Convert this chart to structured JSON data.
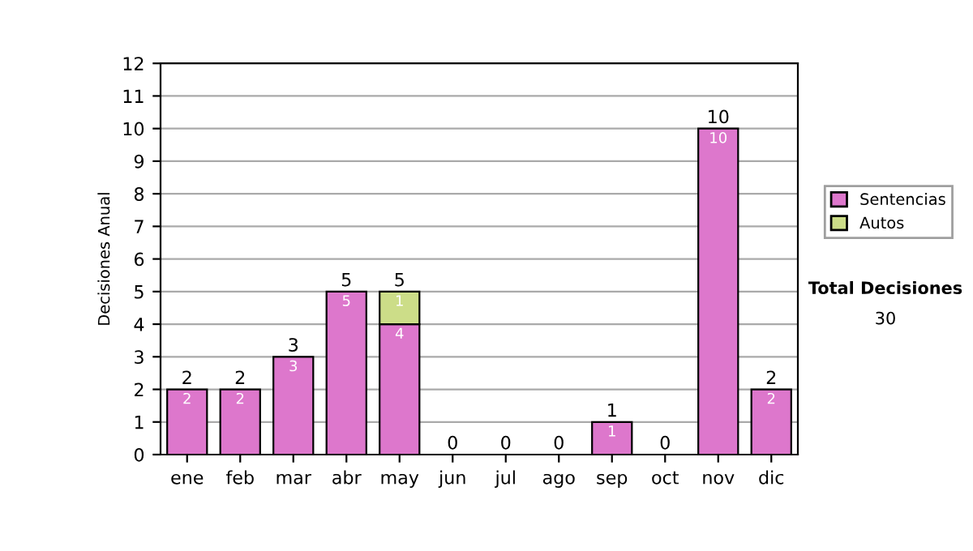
{
  "chart_data": {
    "type": "bar",
    "stacked": true,
    "ylabel": "Decisiones Anual",
    "categories": [
      "ene",
      "feb",
      "mar",
      "abr",
      "may",
      "jun",
      "jul",
      "ago",
      "sep",
      "oct",
      "nov",
      "dic"
    ],
    "series": [
      {
        "name": "Sentencias",
        "color": "#dd77cc",
        "values": [
          2,
          2,
          3,
          5,
          4,
          0,
          0,
          0,
          1,
          0,
          10,
          2
        ],
        "value_labels": [
          "2",
          "2",
          "3",
          "5",
          "4",
          null,
          null,
          null,
          "1",
          null,
          "10",
          "2"
        ]
      },
      {
        "name": "Autos",
        "color": "#ccdd88",
        "values": [
          0,
          0,
          0,
          0,
          1,
          0,
          0,
          0,
          0,
          0,
          0,
          0
        ],
        "value_labels": [
          null,
          null,
          null,
          null,
          "1",
          null,
          null,
          null,
          null,
          null,
          null,
          null
        ]
      }
    ],
    "totals": [
      "2",
      "2",
      "3",
      "5",
      "5",
      "0",
      "0",
      "0",
      "1",
      "0",
      "10",
      "2"
    ],
    "ylim": [
      0,
      12
    ],
    "yticks": [
      0,
      1,
      2,
      3,
      4,
      5,
      6,
      7,
      8,
      9,
      10,
      11,
      12
    ],
    "grid": "y",
    "legend": "right",
    "annotations": [
      "Total Decisiones",
      "30"
    ]
  }
}
